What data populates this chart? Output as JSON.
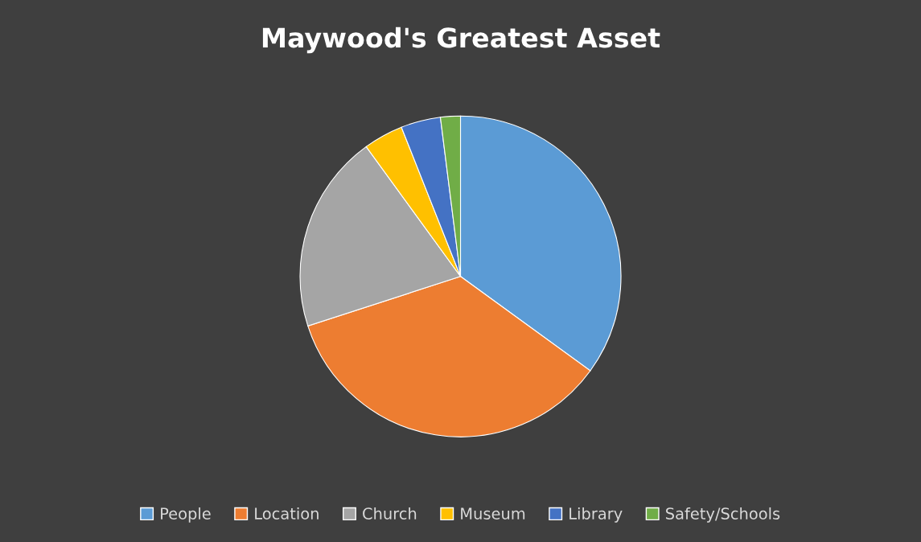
{
  "chart_data": {
    "type": "pie",
    "title": "Maywood's Greatest Asset",
    "categories": [
      "People",
      "Location",
      "Church",
      "Museum",
      "Library",
      "Safety/Schools"
    ],
    "values": [
      35,
      35,
      20,
      4,
      4,
      2
    ],
    "colors": [
      "#5b9bd5",
      "#ed7d31",
      "#a5a5a5",
      "#ffc000",
      "#4472c4",
      "#70ad47"
    ],
    "legend": "bottom"
  }
}
